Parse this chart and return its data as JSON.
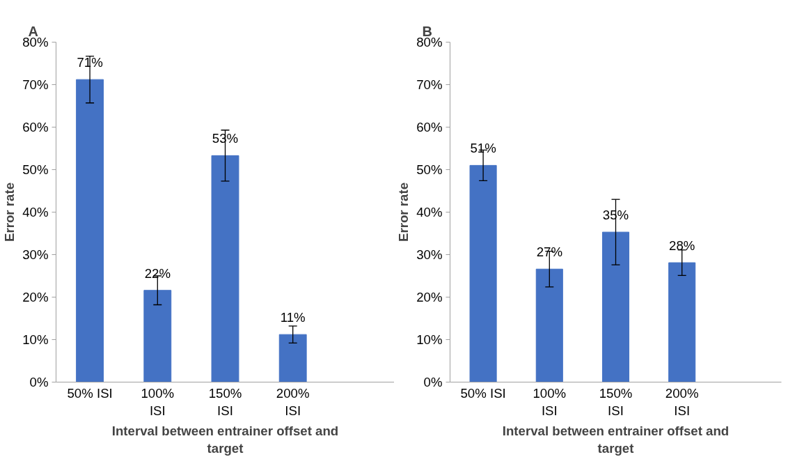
{
  "chart_data": [
    {
      "type": "bar",
      "title": "A",
      "ylabel": "Error rate",
      "xlabel": "Interval between entrainer offset and target",
      "categories": [
        "50% ISI",
        "100% ISI",
        "150% ISI",
        "200% ISI",
        null
      ],
      "values": [
        71.2,
        21.6,
        53.3,
        11.2,
        null
      ],
      "errors": [
        5.5,
        3.4,
        6,
        2,
        null
      ],
      "value_labels": [
        "71%",
        "22%",
        "53%",
        "11%",
        null
      ],
      "color": "#4472c4",
      "ylim": [
        0,
        80
      ],
      "yticks": [
        {
          "value": 0,
          "label": "0%"
        },
        {
          "value": 10,
          "label": "10%"
        },
        {
          "value": 20,
          "label": "20%"
        },
        {
          "value": 30,
          "label": "30%"
        },
        {
          "value": 40,
          "label": "40%"
        },
        {
          "value": 50,
          "label": "50%"
        },
        {
          "value": 60,
          "label": "60%"
        },
        {
          "value": 70,
          "label": "70%"
        },
        {
          "value": 80,
          "label": "80%"
        }
      ]
    },
    {
      "type": "bar",
      "title": "B",
      "ylabel": "Error rate",
      "xlabel": "Interval between entrainer offset and target",
      "categories": [
        "50% ISI",
        "100% ISI",
        "150% ISI",
        "200% ISI",
        null
      ],
      "values": [
        51.0,
        26.6,
        35.3,
        28.1,
        null
      ],
      "errors": [
        3.6,
        4.2,
        7.7,
        3,
        null
      ],
      "value_labels": [
        "51%",
        "27%",
        "35%",
        "28%",
        null
      ],
      "color": "#4472c4",
      "ylim": [
        0,
        80
      ],
      "yticks": [
        {
          "value": 0,
          "label": "0%"
        },
        {
          "value": 10,
          "label": "10%"
        },
        {
          "value": 20,
          "label": "20%"
        },
        {
          "value": 30,
          "label": "30%"
        },
        {
          "value": 40,
          "label": "40%"
        },
        {
          "value": 50,
          "label": "50%"
        },
        {
          "value": 60,
          "label": "60%"
        },
        {
          "value": 70,
          "label": "70%"
        },
        {
          "value": 80,
          "label": "80%"
        }
      ]
    }
  ]
}
